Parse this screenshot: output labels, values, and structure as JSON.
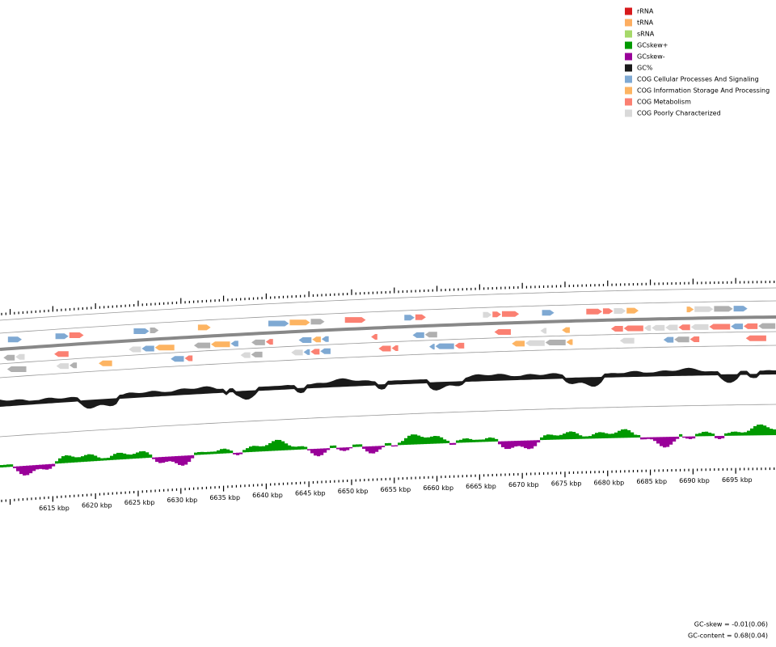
{
  "legend": [
    {
      "label": "rRNA",
      "color": "#d7191c"
    },
    {
      "label": "tRNA",
      "color": "#fdae61"
    },
    {
      "label": "sRNA",
      "color": "#a6d96a"
    },
    {
      "label": "GCskew+",
      "color": "#009900"
    },
    {
      "label": "GCskew-",
      "color": "#990099"
    },
    {
      "label": "GC%",
      "color": "#1a1a1a"
    },
    {
      "label": "COG Cellular Processes And Signaling",
      "color": "#7fa9d3"
    },
    {
      "label": "COG Information Storage And Processing",
      "color": "#fdb462"
    },
    {
      "label": "COG Metabolism",
      "color": "#fb8072"
    },
    {
      "label": "COG Poorly Characterized",
      "color": "#d9d9d9"
    }
  ],
  "scale_labels": [
    "6615 kbp",
    "6620 kbp",
    "6625 kbp",
    "6630 kbp",
    "6635 kbp",
    "6640 kbp",
    "6645 kbp",
    "6650 kbp",
    "6655 kbp",
    "6660 kbp",
    "6665 kbp",
    "6670 kbp",
    "6675 kbp",
    "6680 kbp",
    "6685 kbp",
    "6690 kbp",
    "6695 kbp"
  ],
  "footer": {
    "gc_skew": "GC-skew = -0.01(0.06)",
    "gc_content": "GC-content = 0.68(0.04)"
  }
}
